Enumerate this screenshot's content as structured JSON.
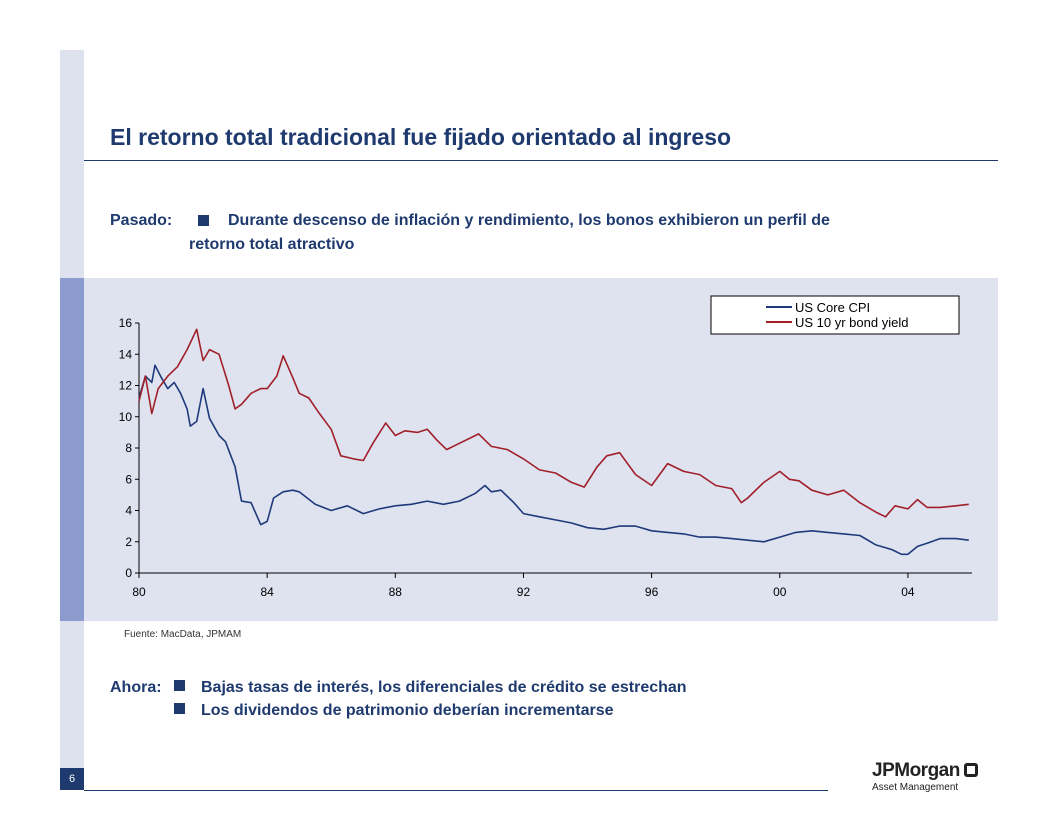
{
  "slide": {
    "page_number": "6",
    "title": "El retorno total tradicional fue fijado orientado al ingreso",
    "past_label": "Pasado:",
    "past_text_line1": "Durante descenso de inflación y rendimiento, los bonos exhibieron un perfil de",
    "past_text_line2": "retorno total atractivo",
    "source": "Fuente: MacData, JPMAM",
    "now_label": "Ahora:",
    "now_items": [
      "Bajas tasas de interés, los diferenciales de crédito se estrechan",
      "Los dividendos de patrimonio deberían incrementarse"
    ],
    "logo_name": "JPMorgan",
    "logo_sub": "Asset Management"
  },
  "colors": {
    "navy": "#1f3a6e",
    "panel": "#dfe3f0",
    "cpi_line": "#1f3a7a",
    "yield_line": "#a0202a"
  },
  "chart_data": {
    "type": "line",
    "title": "",
    "xlabel": "",
    "ylabel": "",
    "xlim": [
      1980,
      2006
    ],
    "ylim": [
      0,
      16
    ],
    "x_ticks": [
      1980,
      1984,
      1988,
      1992,
      1996,
      2000,
      2004
    ],
    "x_tick_labels": [
      "80",
      "84",
      "88",
      "92",
      "96",
      "00",
      "04"
    ],
    "y_ticks": [
      0,
      2,
      4,
      6,
      8,
      10,
      12,
      14,
      16
    ],
    "y_tick_labels": [
      "0",
      "2",
      "4",
      "6",
      "8",
      "10",
      "12",
      "14",
      "16"
    ],
    "grid": false,
    "legend": "top-right",
    "series": [
      {
        "name": "US Core CPI",
        "color": "#1f3a7a",
        "x": [
          1980.0,
          1980.2,
          1980.4,
          1980.5,
          1980.7,
          1980.9,
          1981.1,
          1981.3,
          1981.5,
          1981.6,
          1981.8,
          1982.0,
          1982.2,
          1982.5,
          1982.7,
          1983.0,
          1983.2,
          1983.5,
          1983.8,
          1984.0,
          1984.2,
          1984.5,
          1984.8,
          1985.0,
          1985.5,
          1986.0,
          1986.5,
          1987.0,
          1987.5,
          1988.0,
          1988.5,
          1989.0,
          1989.5,
          1990.0,
          1990.5,
          1990.8,
          1991.0,
          1991.3,
          1991.7,
          1992.0,
          1992.5,
          1993.0,
          1993.5,
          1994.0,
          1994.5,
          1995.0,
          1995.5,
          1996.0,
          1996.5,
          1997.0,
          1997.5,
          1998.0,
          1998.5,
          1999.0,
          1999.5,
          2000.0,
          2000.5,
          2001.0,
          2001.5,
          2002.0,
          2002.5,
          2003.0,
          2003.5,
          2003.8,
          2004.0,
          2004.3,
          2004.6,
          2005.0,
          2005.5,
          2005.9
        ],
        "values": [
          11.2,
          12.6,
          12.2,
          13.3,
          12.5,
          11.8,
          12.2,
          11.5,
          10.5,
          9.4,
          9.7,
          11.8,
          9.9,
          8.8,
          8.4,
          6.8,
          4.6,
          4.5,
          3.1,
          3.3,
          4.8,
          5.2,
          5.3,
          5.2,
          4.4,
          4.0,
          4.3,
          3.8,
          4.1,
          4.3,
          4.4,
          4.6,
          4.4,
          4.6,
          5.1,
          5.6,
          5.2,
          5.3,
          4.5,
          3.8,
          3.6,
          3.4,
          3.2,
          2.9,
          2.8,
          3.0,
          3.0,
          2.7,
          2.6,
          2.5,
          2.3,
          2.3,
          2.2,
          2.1,
          2.0,
          2.3,
          2.6,
          2.7,
          2.6,
          2.5,
          2.4,
          1.8,
          1.5,
          1.2,
          1.2,
          1.7,
          1.9,
          2.2,
          2.2,
          2.1
        ]
      },
      {
        "name": "US 10 yr bond yield",
        "color": "#a0202a",
        "x": [
          1980.0,
          1980.2,
          1980.4,
          1980.6,
          1980.9,
          1981.2,
          1981.5,
          1981.8,
          1982.0,
          1982.2,
          1982.5,
          1982.8,
          1983.0,
          1983.2,
          1983.5,
          1983.8,
          1984.0,
          1984.3,
          1984.5,
          1984.8,
          1985.0,
          1985.3,
          1985.6,
          1986.0,
          1986.3,
          1986.7,
          1987.0,
          1987.3,
          1987.7,
          1988.0,
          1988.3,
          1988.7,
          1989.0,
          1989.3,
          1989.6,
          1990.0,
          1990.3,
          1990.6,
          1991.0,
          1991.5,
          1992.0,
          1992.5,
          1993.0,
          1993.5,
          1993.9,
          1994.3,
          1994.6,
          1995.0,
          1995.5,
          1996.0,
          1996.5,
          1997.0,
          1997.5,
          1998.0,
          1998.5,
          1998.8,
          1999.0,
          1999.5,
          2000.0,
          2000.3,
          2000.6,
          2001.0,
          2001.5,
          2002.0,
          2002.5,
          2003.0,
          2003.3,
          2003.6,
          2004.0,
          2004.3,
          2004.6,
          2005.0,
          2005.5,
          2005.9
        ],
        "values": [
          11.0,
          12.6,
          10.2,
          11.8,
          12.6,
          13.2,
          14.3,
          15.6,
          13.6,
          14.3,
          14.0,
          12.0,
          10.5,
          10.8,
          11.5,
          11.8,
          11.8,
          12.6,
          13.9,
          12.5,
          11.5,
          11.2,
          10.3,
          9.2,
          7.5,
          7.3,
          7.2,
          8.3,
          9.6,
          8.8,
          9.1,
          9.0,
          9.2,
          8.5,
          7.9,
          8.3,
          8.6,
          8.9,
          8.1,
          7.9,
          7.3,
          6.6,
          6.4,
          5.8,
          5.5,
          6.8,
          7.5,
          7.7,
          6.3,
          5.6,
          7.0,
          6.5,
          6.3,
          5.6,
          5.4,
          4.5,
          4.8,
          5.8,
          6.5,
          6.0,
          5.9,
          5.3,
          5.0,
          5.3,
          4.5,
          3.9,
          3.6,
          4.3,
          4.1,
          4.7,
          4.2,
          4.2,
          4.3,
          4.4
        ]
      }
    ]
  }
}
